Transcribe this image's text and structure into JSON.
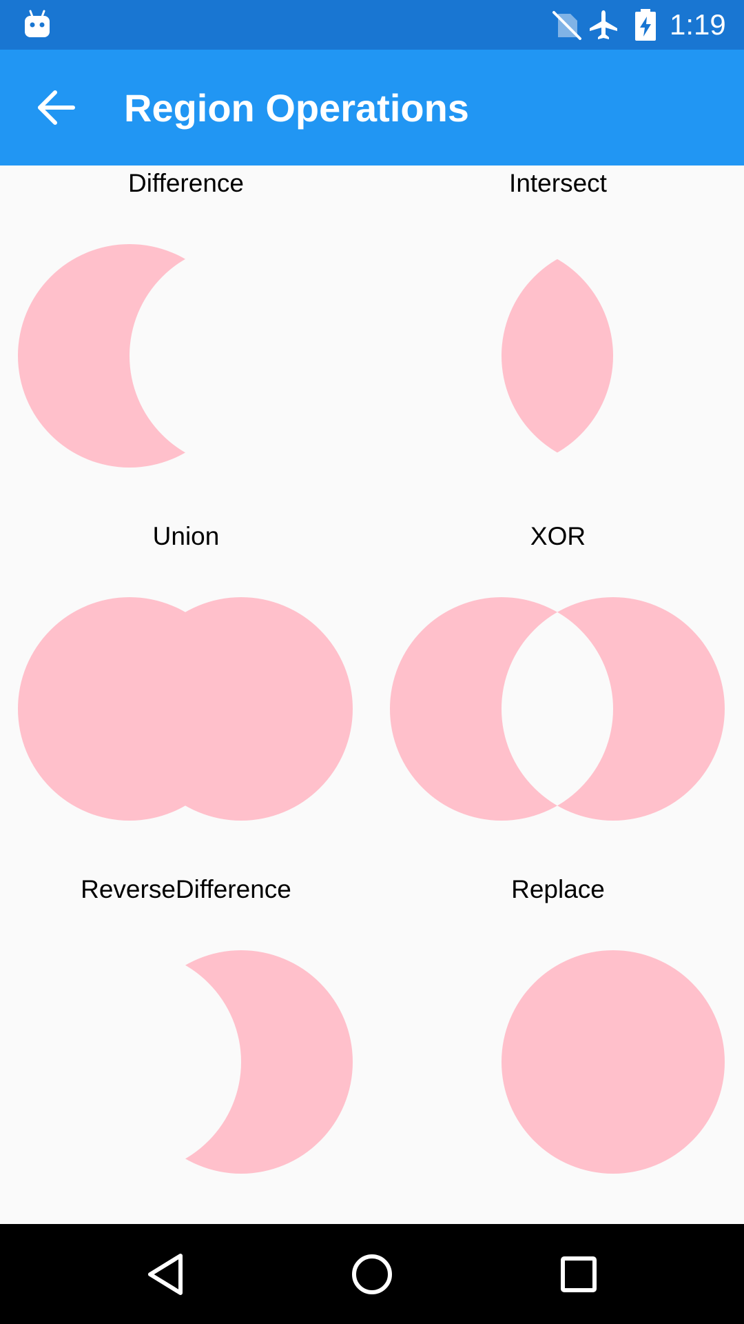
{
  "status_bar": {
    "time": "1:19",
    "icons": [
      "android-debug-icon",
      "no-sim-icon",
      "airplane-mode-icon",
      "battery-charging-icon"
    ],
    "background": "#1976d2"
  },
  "app_bar": {
    "title": "Region Operations",
    "back_icon": "arrow-back-icon",
    "background": "#2196f3"
  },
  "shape_fill": "#ffc0cb",
  "operations": [
    {
      "label": "Difference"
    },
    {
      "label": "Intersect"
    },
    {
      "label": "Union"
    },
    {
      "label": "XOR"
    },
    {
      "label": "ReverseDifference"
    },
    {
      "label": "Replace"
    }
  ],
  "nav_bar": {
    "buttons": [
      "back-triangle-icon",
      "home-circle-icon",
      "recents-square-icon"
    ]
  }
}
